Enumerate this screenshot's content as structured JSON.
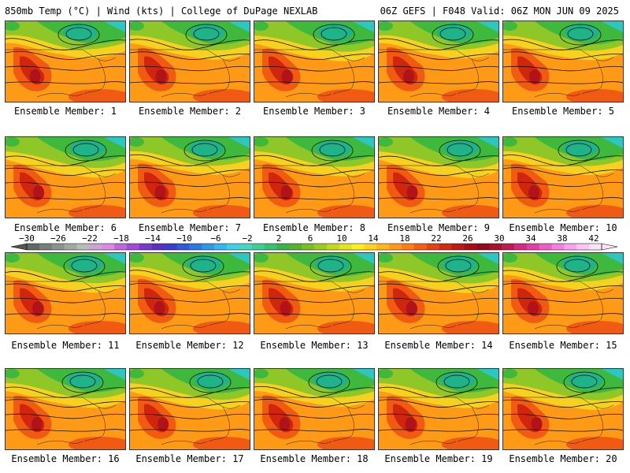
{
  "header": {
    "left": "850mb Temp (°C) | Wind (kts) | College of DuPage NEXLAB",
    "right": "06Z GEFS | F048 Valid: 06Z MON JUN 09 2025"
  },
  "panels": [
    {
      "label": "Ensemble Member: 1"
    },
    {
      "label": "Ensemble Member: 2"
    },
    {
      "label": "Ensemble Member: 3"
    },
    {
      "label": "Ensemble Member: 4"
    },
    {
      "label": "Ensemble Member: 5"
    },
    {
      "label": "Ensemble Member: 6"
    },
    {
      "label": "Ensemble Member: 7"
    },
    {
      "label": "Ensemble Member: 8"
    },
    {
      "label": "Ensemble Member: 9"
    },
    {
      "label": "Ensemble Member: 10"
    },
    {
      "label": "Ensemble Member: 11"
    },
    {
      "label": "Ensemble Member: 12"
    },
    {
      "label": "Ensemble Member: 13"
    },
    {
      "label": "Ensemble Member: 14"
    },
    {
      "label": "Ensemble Member: 15"
    },
    {
      "label": "Ensemble Member: 16"
    },
    {
      "label": "Ensemble Member: 17"
    },
    {
      "label": "Ensemble Member: 18"
    },
    {
      "label": "Ensemble Member: 19"
    },
    {
      "label": "Ensemble Member: 20"
    }
  ],
  "colorbar": {
    "tick_labels": [
      "−30",
      "−26",
      "−22",
      "−18",
      "−14",
      "−10",
      "−6",
      "−2",
      "2",
      "6",
      "10",
      "14",
      "18",
      "22",
      "26",
      "30",
      "34",
      "38",
      "42"
    ],
    "colors": [
      "#5e6b64",
      "#737f78",
      "#8a948e",
      "#a0a8a3",
      "#b6bcb9",
      "#cba4d6",
      "#d98be4",
      "#c266df",
      "#a24bd6",
      "#7a3ac9",
      "#5a2fc2",
      "#3b3dcc",
      "#2f5ad8",
      "#2e78e2",
      "#2f98ea",
      "#34b6ee",
      "#3fd0e6",
      "#46d6c2",
      "#3fcd9a",
      "#37c170",
      "#3bb14a",
      "#55b32f",
      "#78be24",
      "#9ccb1c",
      "#c4d71a",
      "#e6e21b",
      "#ffee1e",
      "#ffd21c",
      "#ffb619",
      "#ff9a17",
      "#ff7e14",
      "#f45e12",
      "#e6420f",
      "#d12a0e",
      "#bd1a10",
      "#a80f14",
      "#930a1a",
      "#a8102e",
      "#c01a55",
      "#d62a7e",
      "#e43ea6",
      "#ee5bc8",
      "#f57ede",
      "#f8a3ec",
      "#fbc6f4",
      "#fde2fa"
    ]
  },
  "map": {
    "colors": {
      "cold": "#1fb38a",
      "cool": "#3fb83e",
      "mild": "#8fc728",
      "warm": "#f6d21e",
      "hot": "#ff9a17",
      "veryhot": "#f05a12",
      "extreme": "#d1260e",
      "extreme2": "#b0131a",
      "teal": "#2ec6c0"
    }
  }
}
